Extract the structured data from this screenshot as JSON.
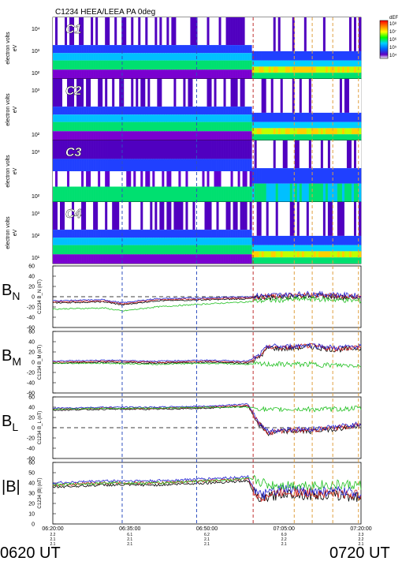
{
  "title": "C1234 HEEA/LEEA PA 0deg",
  "colorbar": {
    "label": "dEF",
    "tick_labels": [
      "10⁸",
      "10⁷",
      "10⁶",
      "10⁵",
      "10⁴"
    ],
    "colors": [
      "#ff0000",
      "#ff8000",
      "#ffff00",
      "#00ff00",
      "#00d0ff",
      "#0060ff",
      "#6000c0",
      "#ffffff"
    ]
  },
  "spectrogram_panels": [
    {
      "probe": "C1",
      "ylabel": "electron volts\neV",
      "ticks": [
        "10⁴",
        "10³",
        "10²"
      ]
    },
    {
      "probe": "C2",
      "ylabel": "electron volts\neV",
      "ticks": [
        "10³",
        "10²"
      ]
    },
    {
      "probe": "C3",
      "ylabel": "electron volts\neV",
      "ticks": [
        "10³",
        "10²"
      ]
    },
    {
      "probe": "C4",
      "ylabel": "electron volts\neV",
      "ticks": [
        "10³",
        "10²",
        "10¹"
      ]
    }
  ],
  "field_panels": [
    {
      "component": "B",
      "sub": "N",
      "ylabel": "C1234 B_N (nT)",
      "ticks": [
        "60",
        "40",
        "20",
        "0",
        "-20",
        "-40",
        "-60"
      ]
    },
    {
      "component": "B",
      "sub": "M",
      "ylabel": "C1234 B_M (nT)",
      "ticks": [
        "60",
        "40",
        "20",
        "0",
        "-20",
        "-40",
        "-60"
      ]
    },
    {
      "component": "B",
      "sub": "L",
      "ylabel": "C1234 B_L (nT)",
      "ticks": [
        "60",
        "40",
        "20",
        "0",
        "-20",
        "-40",
        "-60"
      ]
    },
    {
      "component": "|B|",
      "sub": "",
      "ylabel": "C1234 |B| (nT)",
      "ticks": [
        "60",
        "50",
        "40",
        "30",
        "20",
        "10",
        "0"
      ]
    }
  ],
  "time_axis": {
    "labels": [
      "06:20:00",
      "06:35:00",
      "06:50:00",
      "07:05:00",
      "07:20:00"
    ],
    "sub_labels": [
      [
        "2.2",
        "2.1",
        "2.1"
      ],
      [
        "6.1",
        "2.1",
        "2.1"
      ],
      [
        "6.2",
        "2.1",
        "2.1"
      ],
      [
        "6.9",
        "2.2",
        "2.1"
      ],
      [
        "2.3",
        "2.2",
        "2.1"
      ]
    ],
    "start_label": "0620 UT",
    "end_label": "0720 UT"
  },
  "vertical_markers": [
    {
      "time_min": 13.5,
      "color": "#3050c0"
    },
    {
      "time_min": 28.0,
      "color": "#3050c0"
    },
    {
      "time_min": 39.0,
      "color": "#c03030"
    },
    {
      "time_min": 47.0,
      "color": "#e0a040"
    },
    {
      "time_min": 50.5,
      "color": "#e0a040"
    },
    {
      "time_min": 54.5,
      "color": "#e0a040"
    },
    {
      "time_min": 59.5,
      "color": "#e0a040"
    }
  ],
  "chart_data": [
    {
      "type": "heatmap",
      "title": "C1234 HEEA/LEEA PA 0deg",
      "ylabel": "electron volts eV",
      "series": [
        {
          "name": "C1"
        }
      ],
      "xlim": [
        0,
        60
      ]
    },
    {
      "type": "heatmap",
      "ylabel": "electron volts eV",
      "series": [
        {
          "name": "C2"
        }
      ],
      "xlim": [
        0,
        60
      ]
    },
    {
      "type": "heatmap",
      "ylabel": "electron volts eV",
      "series": [
        {
          "name": "C3"
        }
      ],
      "xlim": [
        0,
        60
      ]
    },
    {
      "type": "heatmap",
      "ylabel": "electron volts eV",
      "series": [
        {
          "name": "C4"
        }
      ],
      "xlim": [
        0,
        60
      ]
    },
    {
      "type": "line",
      "ylabel": "C1234 B_N (nT)",
      "ylim": [
        -60,
        60
      ],
      "xlim": [
        0,
        60
      ],
      "x": [
        0,
        10,
        13.5,
        20,
        30,
        38,
        40,
        45,
        50,
        55,
        60
      ],
      "series": [
        {
          "values": [
            -10,
            -8,
            -14,
            -6,
            -4,
            -2,
            0,
            2,
            4,
            2,
            0
          ]
        },
        {
          "values": [
            -22,
            -20,
            -26,
            -18,
            -12,
            -8,
            -6,
            -4,
            -2,
            -4,
            -6
          ]
        }
      ]
    },
    {
      "type": "line",
      "ylabel": "C1234 B_M (nT)",
      "ylim": [
        -60,
        60
      ],
      "xlim": [
        0,
        60
      ],
      "x": [
        0,
        10,
        20,
        30,
        38,
        40,
        42,
        45,
        50,
        55,
        60
      ],
      "series": [
        {
          "values": [
            0,
            2,
            0,
            2,
            0,
            10,
            30,
            28,
            32,
            26,
            30
          ]
        },
        {
          "values": [
            0,
            0,
            -2,
            0,
            -2,
            -2,
            -2,
            -2,
            -2,
            -4,
            -4
          ]
        }
      ]
    },
    {
      "type": "line",
      "ylabel": "C1234 B_L (nT)",
      "ylim": [
        -60,
        60
      ],
      "xlim": [
        0,
        60
      ],
      "x": [
        0,
        10,
        20,
        30,
        38,
        40,
        42,
        45,
        50,
        55,
        60
      ],
      "series": [
        {
          "values": [
            36,
            38,
            38,
            40,
            44,
            10,
            -10,
            -5,
            -5,
            0,
            5
          ]
        },
        {
          "values": [
            38,
            40,
            40,
            42,
            42,
            40,
            36,
            38,
            38,
            38,
            40
          ]
        }
      ]
    },
    {
      "type": "line",
      "ylabel": "C1234 |B| (nT)",
      "ylim": [
        0,
        60
      ],
      "xlim": [
        0,
        60
      ],
      "x": [
        0,
        10,
        20,
        30,
        38,
        40,
        42,
        45,
        50,
        55,
        60
      ],
      "series": [
        {
          "values": [
            38,
            40,
            40,
            42,
            44,
            25,
            28,
            32,
            30,
            30,
            28
          ]
        },
        {
          "values": [
            40,
            42,
            42,
            44,
            46,
            44,
            40,
            40,
            40,
            40,
            40
          ]
        }
      ]
    }
  ]
}
